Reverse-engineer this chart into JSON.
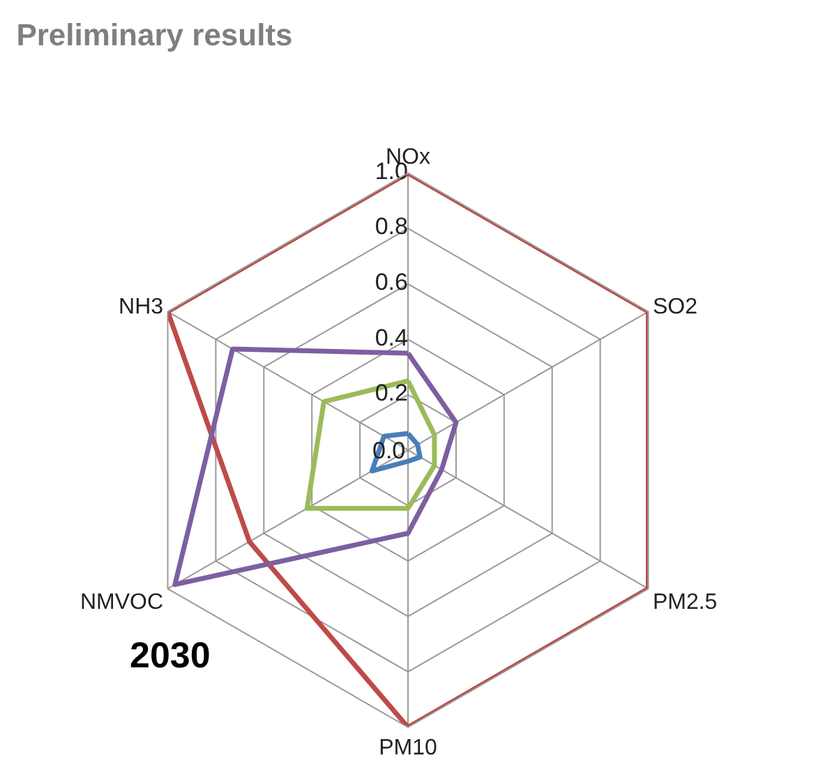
{
  "chart_data": {
    "type": "radar",
    "title": "Preliminary results",
    "annotations": [
      "2030"
    ],
    "categories": [
      "NOx",
      "SO2",
      "PM2.5",
      "PM10",
      "NMVOC",
      "NH3"
    ],
    "ylim": [
      0,
      1.0
    ],
    "yticks": [
      {
        "value": 0,
        "label": "0.0"
      },
      0.2,
      0.4,
      0.6,
      0.8,
      {
        "value": 1.0,
        "label": "1.0"
      }
    ],
    "grid": true,
    "marker": "none",
    "series": [
      {
        "color": "#be4b48",
        "values": [
          1.0,
          1.0,
          1.0,
          1.0,
          0.66,
          1.0
        ]
      },
      {
        "color": "#7d5fa0",
        "values": [
          0.35,
          0.2,
          0.14,
          0.3,
          0.97,
          0.73
        ]
      },
      {
        "color": "#9bbb59",
        "values": [
          0.25,
          0.11,
          0.11,
          0.21,
          0.42,
          0.35
        ]
      },
      {
        "color": "#4a7ebb",
        "values": [
          0.06,
          0.04,
          0.05,
          0.04,
          0.15,
          0.1
        ]
      }
    ]
  }
}
